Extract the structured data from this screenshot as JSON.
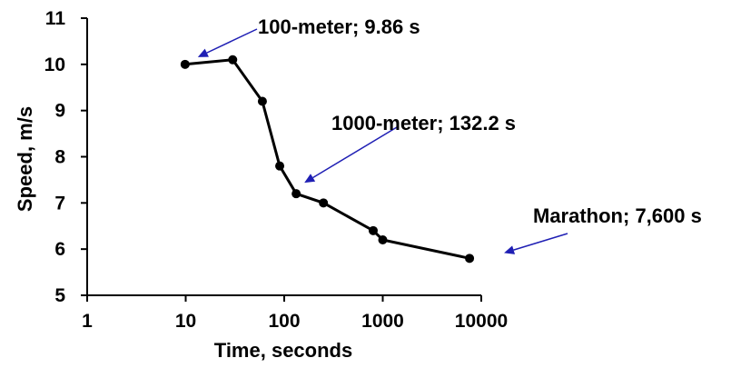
{
  "chart_data": {
    "type": "line",
    "xlabel": "Time, seconds",
    "ylabel": "Speed, m/s",
    "xscale": "log",
    "xlim": [
      1,
      10000
    ],
    "ylim": [
      5,
      11
    ],
    "xticks": [
      "1",
      "10",
      "100",
      "1000",
      "10000"
    ],
    "yticks": [
      "5",
      "6",
      "7",
      "8",
      "9",
      "10",
      "11"
    ],
    "grid": false,
    "legend": "none",
    "series": [
      {
        "color": "#000000",
        "points": [
          {
            "x": 9.86,
            "y": 10.0
          },
          {
            "x": 30,
            "y": 10.1
          },
          {
            "x": 60,
            "y": 9.2
          },
          {
            "x": 90,
            "y": 7.8
          },
          {
            "x": 132.2,
            "y": 7.2
          },
          {
            "x": 250,
            "y": 7.0
          },
          {
            "x": 800,
            "y": 6.4
          },
          {
            "x": 1000,
            "y": 6.2
          },
          {
            "x": 7600,
            "y": 5.8
          }
        ]
      }
    ],
    "annotations": [
      {
        "text": "100-meter; 9.86 s",
        "target": {
          "x": 9.86,
          "y": 10.0
        },
        "arrow_color": "#1f1fb4"
      },
      {
        "text": "1000-meter; 132.2 s",
        "target": {
          "x": 132.2,
          "y": 7.2
        },
        "arrow_color": "#1f1fb4"
      },
      {
        "text": "Marathon; 7,600 s",
        "target": {
          "x": 7600,
          "y": 5.8
        },
        "arrow_color": "#1f1fb4"
      }
    ]
  }
}
